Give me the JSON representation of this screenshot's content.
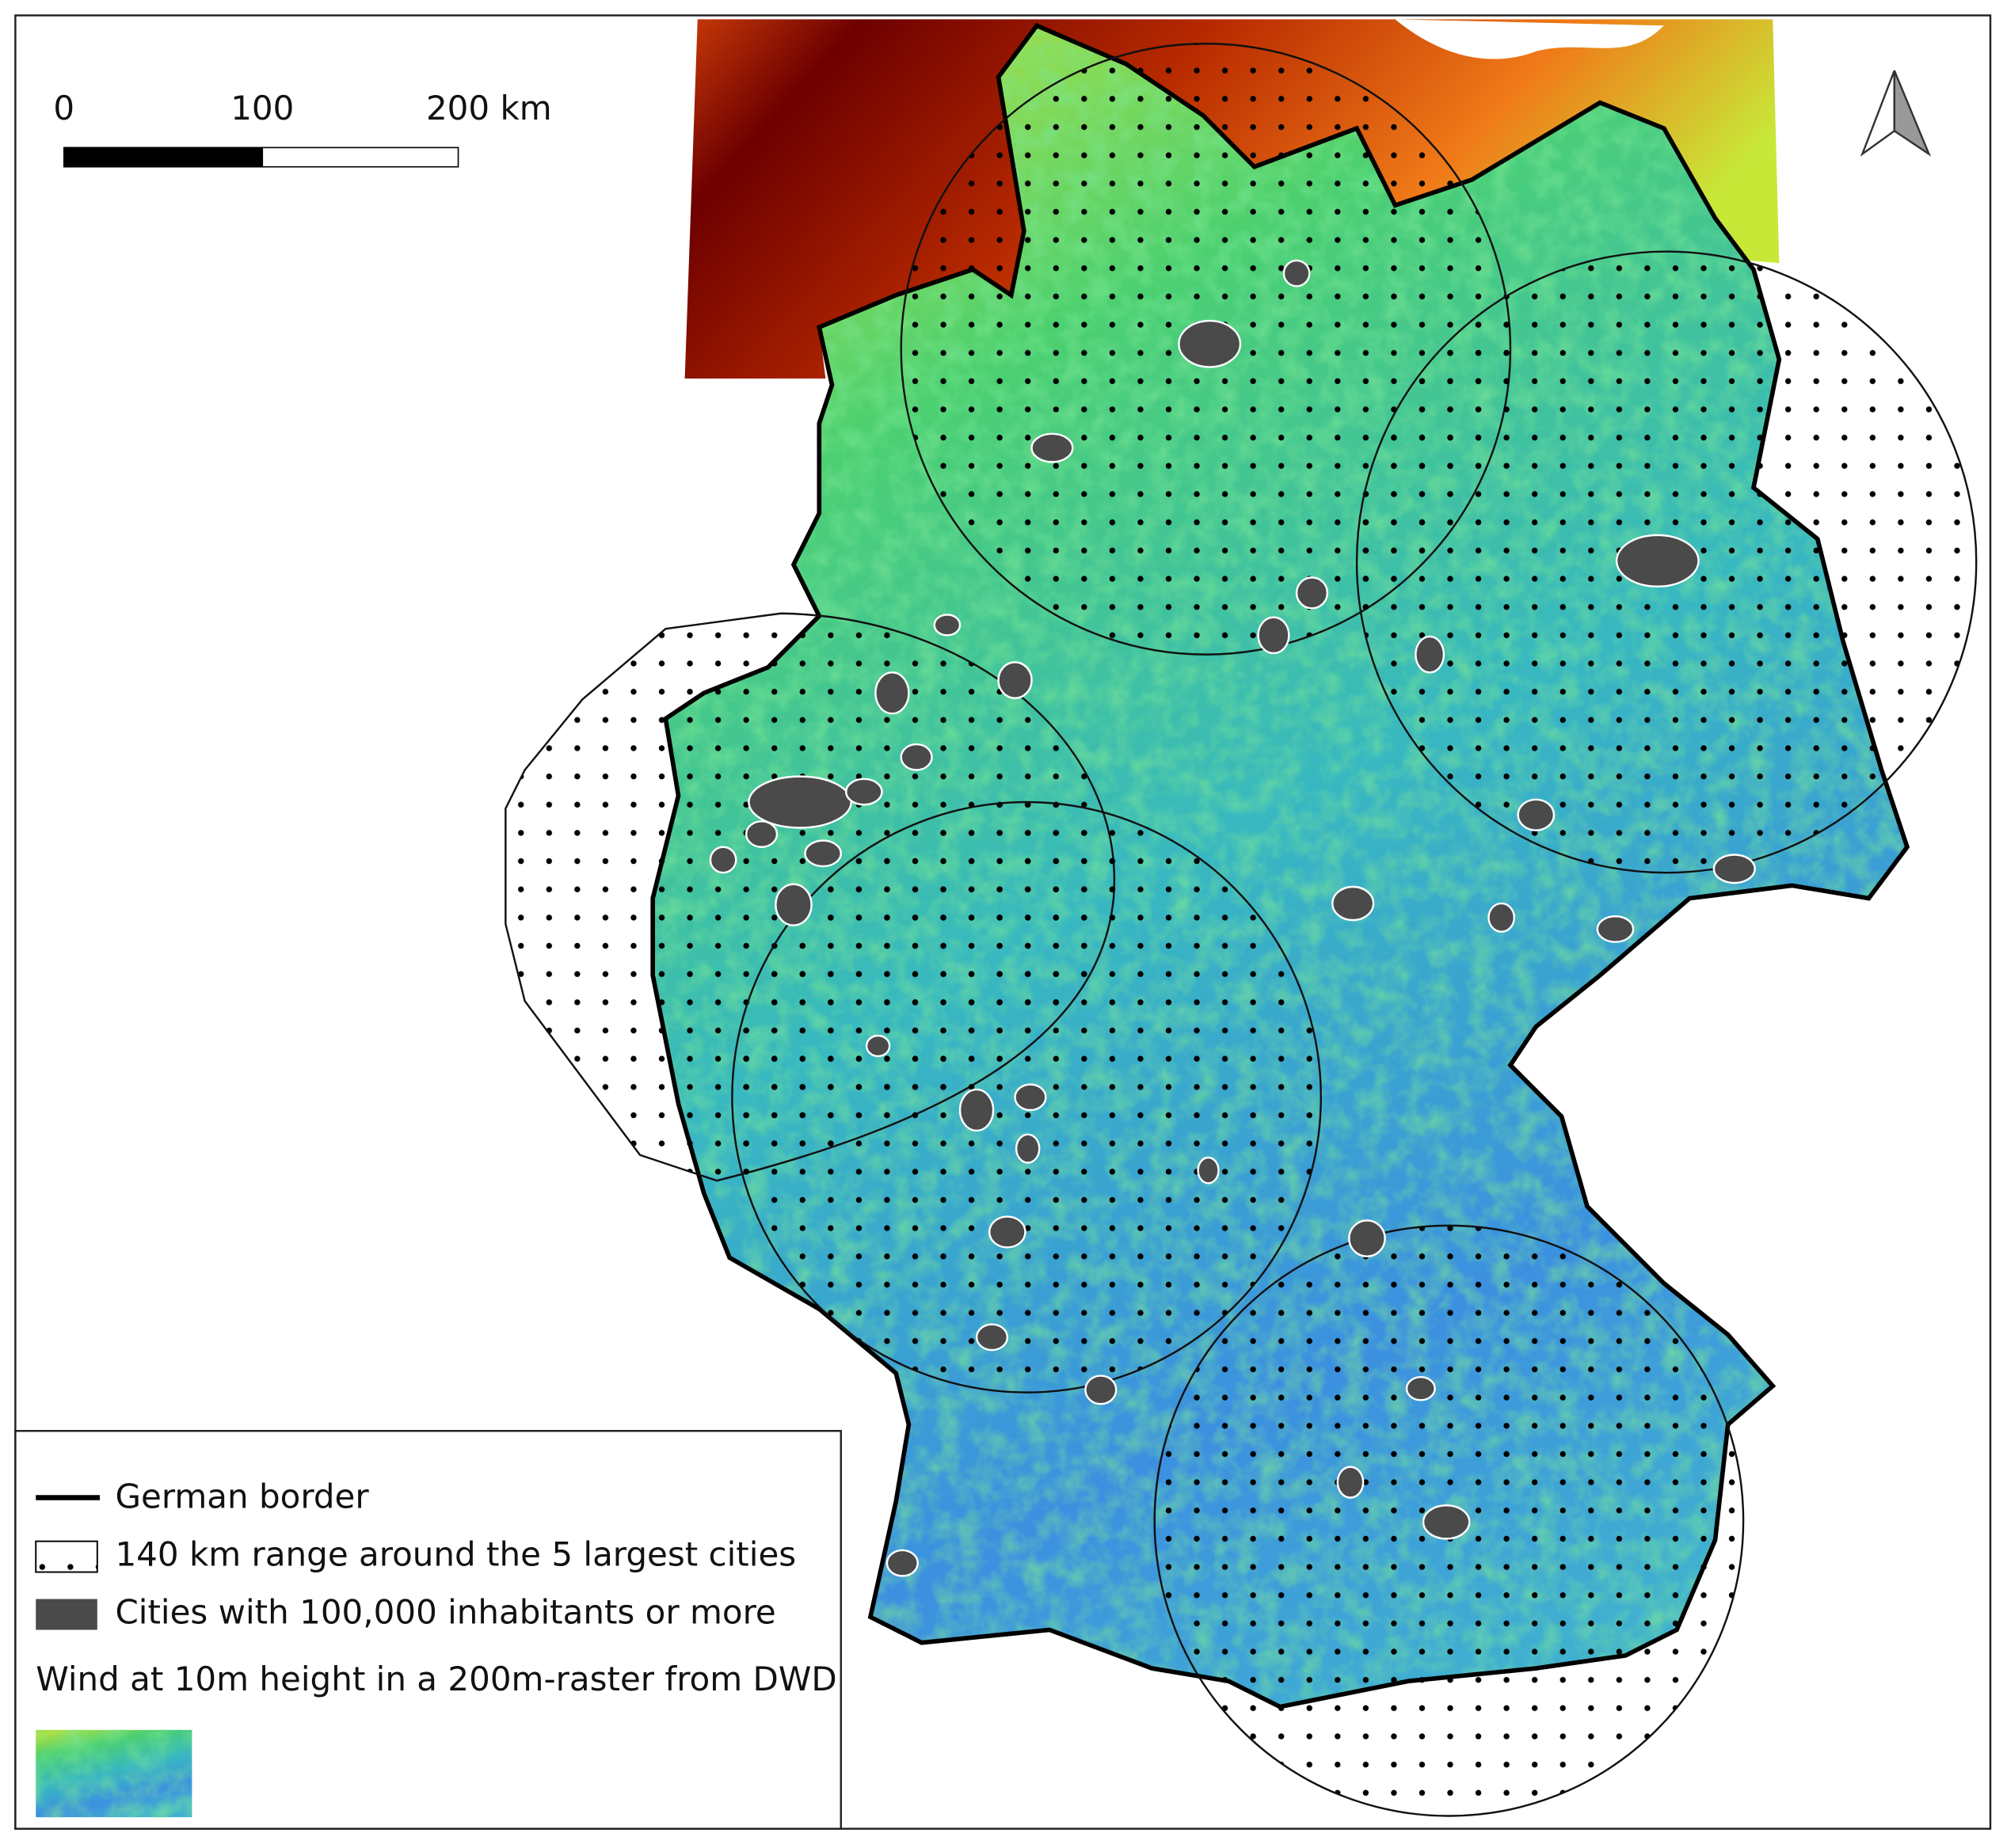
{
  "scale_bar": {
    "labels": [
      "0",
      "100",
      "200 km"
    ]
  },
  "legend": {
    "items": [
      "German border",
      "140 km range around the 5 largest cities",
      "Cities with 100,000 inhabitants or more",
      "Wind at 10m height in a 200m-raster from DWD"
    ]
  }
}
